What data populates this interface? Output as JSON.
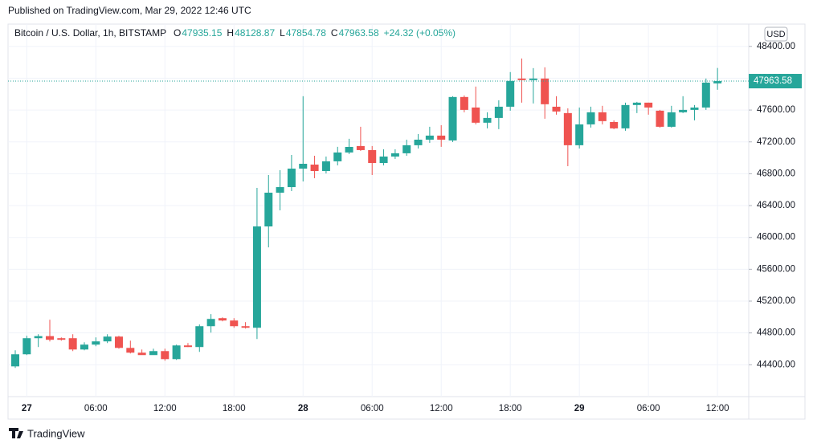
{
  "published": "Published on TradingView.com, Mar 29, 2022 12:46 UTC",
  "brand": "TradingView",
  "chart_data": {
    "type": "candlestick",
    "title": "Bitcoin / U.S. Dollar, 1h, BITSTAMP",
    "legend_labels": [
      "O",
      "H",
      "L",
      "C"
    ],
    "change": "+24.32 (+0.05%)",
    "currency": "USD",
    "up_color": "#26a69a",
    "down_color": "#ef5350",
    "grid": true,
    "categories": [
      null,
      "27",
      null,
      null,
      null,
      null,
      null,
      "06:00",
      null,
      null,
      null,
      null,
      null,
      "12:00",
      null,
      null,
      null,
      null,
      null,
      "18:00",
      null,
      null,
      null,
      null,
      null,
      "28",
      null,
      null,
      null,
      null,
      null,
      "06:00",
      null,
      null,
      null,
      null,
      null,
      "12:00",
      null,
      null,
      null,
      null,
      null,
      "18:00",
      null,
      null,
      null,
      null,
      null,
      "29",
      null,
      null,
      null,
      null,
      null,
      "06:00",
      null,
      null,
      null,
      null,
      null,
      "12:00"
    ],
    "open": [
      44380,
      44532,
      44734,
      44760,
      44734,
      44734,
      44592,
      44653,
      44694,
      44754,
      44612,
      44552,
      44522,
      44572,
      44471,
      44643,
      44623,
      44885,
      44986,
      44956,
      44885,
      44865,
      46138,
      46562,
      46632,
      46864,
      46915,
      46834,
      46956,
      47067,
      47148,
      47097,
      46935,
      47016,
      47057,
      47158,
      47228,
      47279,
      47218,
      47764,
      47632,
      47441,
      47501,
      47642,
      47996,
      47976,
      47996,
      47642,
      47562,
      47158,
      47420,
      47572,
      47450,
      47370,
      47663,
      47693,
      47592,
      47390,
      47572,
      47602,
      47632,
      47935.15
    ],
    "high": [
      44582,
      44764,
      44784,
      44966,
      44744,
      44784,
      44683,
      44744,
      44784,
      44764,
      44703,
      44592,
      44602,
      44602,
      44653,
      44673,
      44906,
      45037,
      44996,
      44986,
      44936,
      46622,
      46784,
      46845,
      47036,
      47774,
      47026,
      47016,
      47138,
      47239,
      47390,
      47148,
      47107,
      47107,
      47228,
      47299,
      47390,
      47410,
      47774,
      47784,
      47895,
      47572,
      47723,
      48077,
      48248,
      48127,
      48137,
      47774,
      47622,
      47632,
      47642,
      47653,
      47471,
      47693,
      47703,
      47693,
      47602,
      47653,
      47774,
      47663,
      47996,
      48128.87
    ],
    "low": [
      44360,
      44522,
      44623,
      44693,
      44703,
      44572,
      44582,
      44633,
      44673,
      44602,
      44542,
      44532,
      44532,
      44451,
      44461,
      44623,
      44562,
      44804,
      44946,
      44865,
      44855,
      44724,
      45875,
      46340,
      46582,
      46703,
      46744,
      46804,
      46905,
      47047,
      47087,
      46784,
      46905,
      46986,
      47026,
      47117,
      47188,
      47138,
      47198,
      47572,
      47420,
      47370,
      47360,
      47592,
      47693,
      47683,
      47491,
      47542,
      46895,
      47117,
      47380,
      47420,
      47360,
      47340,
      47562,
      47542,
      47380,
      47380,
      47562,
      47471,
      47602,
      47854.78
    ],
    "close": [
      44532,
      44734,
      44760,
      44714,
      44714,
      44592,
      44653,
      44694,
      44754,
      44612,
      44552,
      44522,
      44572,
      44471,
      44643,
      44623,
      44885,
      44976,
      44956,
      44885,
      44865,
      46138,
      46562,
      46632,
      46864,
      46925,
      46834,
      46956,
      47067,
      47137,
      47097,
      46935,
      47016,
      47057,
      47158,
      47228,
      47279,
      47228,
      47764,
      47602,
      47441,
      47501,
      47642,
      47966,
      47976,
      47996,
      47673,
      47582,
      47158,
      47420,
      47572,
      47461,
      47370,
      47663,
      47693,
      47632,
      47390,
      47572,
      47602,
      47632,
      47945,
      47963.58
    ],
    "ylim": [
      44000,
      48680
    ],
    "yticks": [
      {
        "value": 44400,
        "label": "44400.00"
      },
      {
        "value": 44800,
        "label": "44800.00"
      },
      {
        "value": 45200,
        "label": "45200.00"
      },
      {
        "value": 45600,
        "label": "45600.00"
      },
      {
        "value": 46000,
        "label": "46000.00"
      },
      {
        "value": 46400,
        "label": "46400.00"
      },
      {
        "value": 46800,
        "label": "46800.00"
      },
      {
        "value": 47200,
        "label": "47200.00"
      },
      {
        "value": 47600,
        "label": "47600.00"
      },
      {
        "value": 48000,
        "label": "48000.00"
      },
      {
        "value": 48400,
        "label": "48400.00"
      }
    ]
  }
}
